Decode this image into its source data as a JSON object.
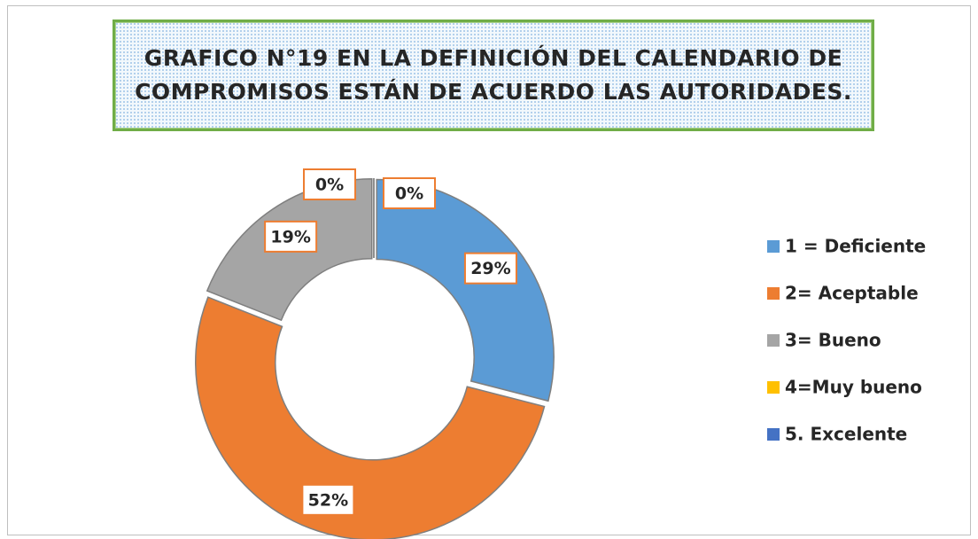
{
  "chart_data": {
    "type": "donut",
    "title": "GRAFICO N°19  EN LA DEFINICIÓN DEL CALENDARIO DE COMPROMISOS ESTÁN DE ACUERDO  LAS AUTORIDADES.",
    "categories": [
      "1 = Deficiente",
      "2= Aceptable",
      "3= Bueno",
      "4=Muy bueno",
      "5. Excelente"
    ],
    "values": [
      29,
      52,
      19,
      0,
      0
    ],
    "value_labels": [
      "29%",
      "52%",
      "19%",
      "0%",
      "0%"
    ],
    "colors": [
      "#5b9bd5",
      "#ed7d31",
      "#a5a5a5",
      "#ffc000",
      "#4472c4"
    ],
    "legend": "right"
  }
}
